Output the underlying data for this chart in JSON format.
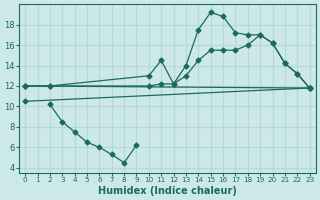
{
  "xlabel": "Humidex (Indice chaleur)",
  "xlim": [
    -0.5,
    23.5
  ],
  "ylim": [
    3.5,
    20
  ],
  "yticks": [
    4,
    6,
    8,
    10,
    12,
    14,
    16,
    18
  ],
  "xticks": [
    0,
    1,
    2,
    3,
    4,
    5,
    6,
    7,
    8,
    9,
    10,
    11,
    12,
    13,
    14,
    15,
    16,
    17,
    18,
    19,
    20,
    21,
    22,
    23
  ],
  "bg_color": "#cce8e8",
  "line_color": "#1a6b5a",
  "grid_color": "#b8d8d8",
  "lines": [
    {
      "x": [
        0,
        2,
        10,
        11,
        12,
        13,
        14,
        15,
        16,
        17,
        18,
        19,
        20,
        21,
        22,
        23
      ],
      "y": [
        12,
        12,
        13.0,
        14.5,
        12.2,
        14.0,
        17.5,
        19.2,
        18.8,
        17.2,
        17.0,
        17.0,
        16.2,
        14.2,
        13.2,
        11.8
      ]
    },
    {
      "x": [
        0,
        2,
        10,
        11,
        12,
        13,
        14,
        15,
        16,
        17,
        18,
        19,
        20,
        21,
        22,
        23
      ],
      "y": [
        12,
        12,
        12.0,
        12.2,
        12.2,
        13.0,
        14.5,
        15.5,
        15.5,
        15.5,
        16.0,
        17.0,
        16.2,
        14.2,
        13.2,
        11.8
      ]
    },
    {
      "x": [
        0,
        23
      ],
      "y": [
        12,
        11.8
      ]
    },
    {
      "x": [
        0,
        23
      ],
      "y": [
        10.5,
        11.8
      ]
    },
    {
      "x": [
        2,
        3,
        4,
        5,
        6,
        7,
        8,
        9
      ],
      "y": [
        10.2,
        8.5,
        7.5,
        6.5,
        6.0,
        5.3,
        4.5,
        6.2
      ]
    }
  ]
}
